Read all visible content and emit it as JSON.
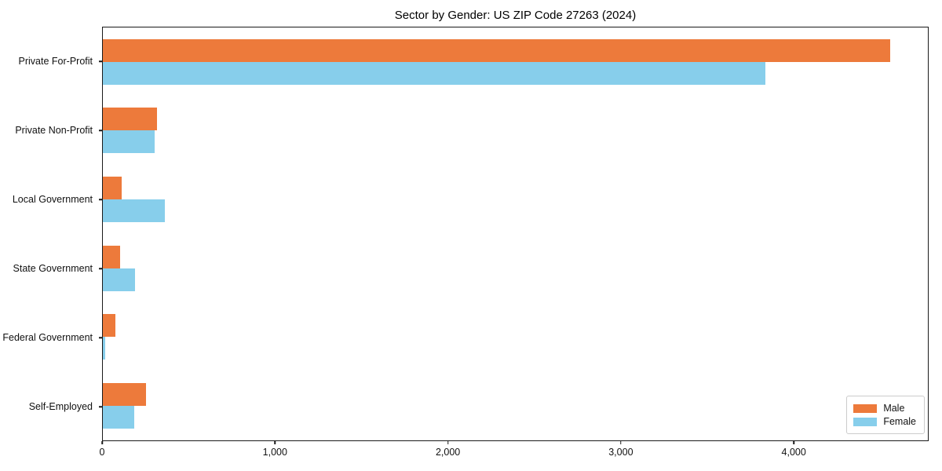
{
  "title": "Sector by Gender: US ZIP Code 27263 (2024)",
  "chart_data": {
    "type": "bar",
    "orientation": "horizontal",
    "title": "Sector by Gender: US ZIP Code 27263 (2024)",
    "xlabel": "",
    "ylabel": "",
    "categories": [
      "Private For-Profit",
      "Private Non-Profit",
      "Local Government",
      "State Government",
      "Federal Government",
      "Self-Employed"
    ],
    "series": [
      {
        "name": "Male",
        "color": "#ed7a3b",
        "values": [
          4560,
          315,
          110,
          100,
          75,
          250
        ]
      },
      {
        "name": "Female",
        "color": "#87ceeb",
        "values": [
          3840,
          300,
          360,
          185,
          15,
          180
        ]
      }
    ],
    "xlim": [
      0,
      4780
    ],
    "x_tick_values": [
      0,
      1000,
      2000,
      3000,
      4000
    ],
    "x_tick_labels": [
      "0",
      "1,000",
      "2,000",
      "3,000",
      "4,000"
    ],
    "grid": false,
    "legend_position": "lower right"
  }
}
